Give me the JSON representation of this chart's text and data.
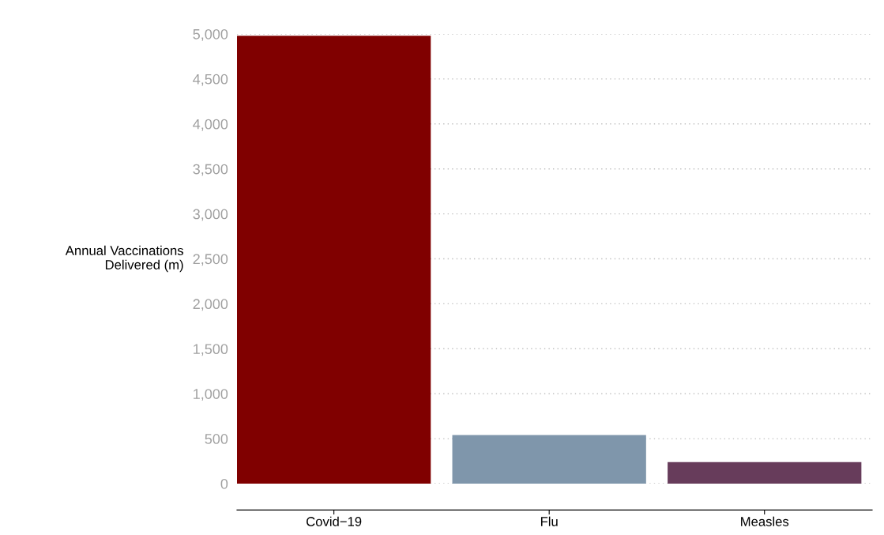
{
  "chart_data": {
    "type": "bar",
    "ylabel": "Annual Vaccinations\nDelivered (m)",
    "categories": [
      "Covid−19",
      "Flu",
      "Measles"
    ],
    "values": [
      4980,
      540,
      240
    ],
    "colors": [
      "#800000",
      "#7f96ab",
      "#673c5b"
    ],
    "ylim": [
      0,
      5000
    ],
    "yticks": [
      0,
      {
        "value": 500,
        "label": "500"
      },
      {
        "value": 1000,
        "label": "1,000"
      },
      {
        "value": 1500,
        "label": "1,500"
      },
      {
        "value": 2000,
        "label": "2,000"
      },
      {
        "value": 2500,
        "label": "2,500"
      },
      {
        "value": 3000,
        "label": "3,000"
      },
      {
        "value": 3500,
        "label": "3,500"
      },
      {
        "value": 4000,
        "label": "4,000"
      },
      {
        "value": 4500,
        "label": "4,500"
      },
      {
        "value": 5000,
        "label": "5,000"
      }
    ],
    "grid": "y",
    "legend": false
  }
}
